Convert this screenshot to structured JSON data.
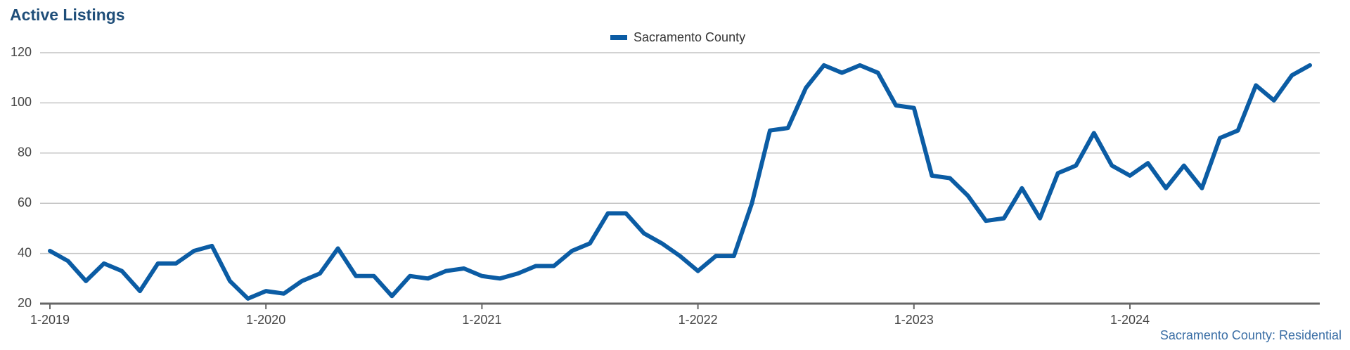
{
  "chart_data": {
    "type": "line",
    "title": "Active Listings",
    "annotation": "Sacramento County: Residential",
    "legend": "top",
    "grid": true,
    "categories": [
      "1-2019",
      null,
      null,
      null,
      null,
      null,
      null,
      null,
      null,
      null,
      null,
      null,
      "1-2020",
      null,
      null,
      null,
      null,
      null,
      null,
      null,
      null,
      null,
      null,
      null,
      "1-2021",
      null,
      null,
      null,
      null,
      null,
      null,
      null,
      null,
      null,
      null,
      null,
      "1-2022",
      null,
      null,
      null,
      null,
      null,
      null,
      null,
      null,
      null,
      null,
      null,
      "1-2023",
      null,
      null,
      null,
      null,
      null,
      null,
      null,
      null,
      null,
      null,
      null,
      "1-2024",
      null,
      null,
      null,
      null,
      null,
      null,
      null,
      null,
      null,
      null
    ],
    "series": [
      {
        "name": "Sacramento County",
        "color": "#0b5ca4",
        "values": [
          41,
          37,
          29,
          36,
          33,
          25,
          36,
          36,
          41,
          43,
          29,
          22,
          25,
          24,
          29,
          32,
          42,
          31,
          31,
          23,
          31,
          30,
          33,
          34,
          31,
          30,
          32,
          35,
          35,
          41,
          44,
          56,
          56,
          48,
          44,
          39,
          33,
          39,
          39,
          60,
          89,
          90,
          106,
          115,
          112,
          115,
          112,
          99,
          98,
          71,
          70,
          63,
          53,
          54,
          66,
          54,
          72,
          75,
          88,
          75,
          71,
          76,
          66,
          75,
          66,
          86,
          89,
          107,
          101,
          111,
          115
        ]
      }
    ],
    "ylim": [
      20,
      120
    ],
    "yticks": [
      20,
      40,
      60,
      80,
      100,
      120
    ]
  }
}
